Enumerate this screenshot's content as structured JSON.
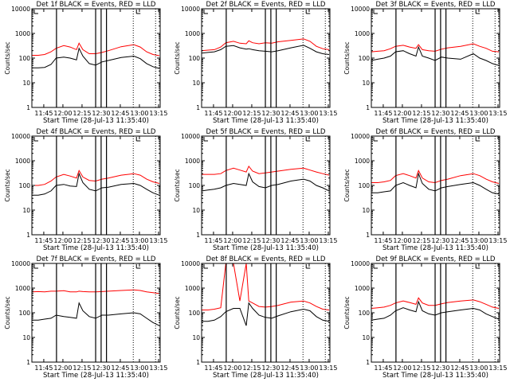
{
  "chart_data": {
    "type": "line",
    "layout": "3x3 grid",
    "xlabel": "Start Time (28-Jul-13 11:35:40)",
    "ylabel": "Counts/sec",
    "y_scale": "log",
    "ylim": [
      1,
      10000
    ],
    "y_ticks": [
      "1",
      "10",
      "100",
      "1000",
      "10000"
    ],
    "x_ticks": [
      "11:45",
      "12:00",
      "12:15",
      "12:30",
      "12:45",
      "13:00",
      "13:15"
    ],
    "x_tick_minutes": [
      9.33,
      24.33,
      39.33,
      54.33,
      69.33,
      84.33,
      99.33
    ],
    "xlim_minutes_since_start": [
      0,
      100.6
    ],
    "x_minutes_since_start": [
      0,
      5,
      10,
      15,
      19,
      25,
      30,
      35,
      37,
      40,
      45,
      50,
      55,
      60,
      70,
      80,
      85,
      90,
      95,
      100
    ],
    "vlines_solid_minutes": [
      19.3,
      50,
      54.3,
      58.5
    ],
    "vlines_dotted_minutes": [
      79.5,
      97
    ],
    "series_colors": {
      "events": "#000000",
      "lld": "#ff0000"
    },
    "panels": [
      {
        "title": "Det 1f BLACK = Events, RED = LLD",
        "events": [
          40,
          40,
          42,
          55,
          100,
          110,
          100,
          85,
          250,
          120,
          60,
          52,
          70,
          80,
          105,
          120,
          95,
          60,
          45,
          38
        ],
        "lld": [
          130,
          130,
          140,
          180,
          250,
          320,
          280,
          220,
          400,
          220,
          150,
          150,
          170,
          200,
          290,
          350,
          280,
          180,
          140,
          125
        ]
      },
      {
        "title": "Det 2f BLACK = Events, RED = LLD",
        "events": [
          160,
          170,
          180,
          220,
          300,
          320,
          260,
          230,
          240,
          220,
          200,
          190,
          180,
          200,
          260,
          330,
          250,
          180,
          150,
          140
        ],
        "lld": [
          200,
          210,
          220,
          280,
          420,
          480,
          400,
          380,
          500,
          420,
          380,
          420,
          400,
          460,
          520,
          600,
          480,
          300,
          240,
          220
        ]
      },
      {
        "title": "Det 3f BLACK = Events, RED = LLD",
        "events": [
          80,
          90,
          100,
          120,
          180,
          200,
          150,
          120,
          280,
          120,
          100,
          80,
          110,
          100,
          90,
          150,
          100,
          80,
          60,
          50
        ],
        "lld": [
          180,
          190,
          200,
          240,
          300,
          330,
          280,
          250,
          350,
          220,
          200,
          190,
          230,
          260,
          300,
          380,
          300,
          250,
          190,
          180
        ]
      },
      {
        "title": "Det 4f BLACK = Events, RED = LLD",
        "events": [
          40,
          40,
          45,
          60,
          100,
          110,
          95,
          90,
          300,
          130,
          70,
          60,
          80,
          85,
          110,
          120,
          100,
          70,
          50,
          40
        ],
        "lld": [
          100,
          100,
          110,
          150,
          220,
          280,
          240,
          200,
          400,
          220,
          160,
          150,
          180,
          200,
          260,
          300,
          260,
          180,
          140,
          120
        ]
      },
      {
        "title": "Det 5f BLACK = Events, RED = LLD",
        "events": [
          60,
          65,
          70,
          80,
          100,
          120,
          110,
          100,
          300,
          140,
          90,
          80,
          100,
          110,
          150,
          180,
          150,
          100,
          80,
          60
        ],
        "lld": [
          280,
          280,
          280,
          300,
          400,
          500,
          420,
          350,
          600,
          380,
          300,
          320,
          350,
          380,
          450,
          500,
          420,
          350,
          300,
          260
        ]
      },
      {
        "title": "Det 6f BLACK = Events, RED = LLD",
        "events": [
          50,
          50,
          55,
          60,
          100,
          130,
          100,
          80,
          300,
          120,
          70,
          60,
          80,
          90,
          110,
          130,
          100,
          70,
          50,
          45
        ],
        "lld": [
          130,
          130,
          140,
          160,
          250,
          300,
          250,
          200,
          400,
          200,
          140,
          130,
          160,
          180,
          250,
          300,
          250,
          180,
          140,
          120
        ]
      },
      {
        "title": "Det 7f BLACK = Events, RED = LLD",
        "events": [
          50,
          50,
          55,
          60,
          80,
          70,
          65,
          60,
          250,
          120,
          70,
          60,
          80,
          80,
          90,
          100,
          90,
          60,
          40,
          30
        ],
        "lld": [
          700,
          720,
          700,
          750,
          750,
          780,
          700,
          700,
          750,
          720,
          700,
          700,
          720,
          750,
          800,
          850,
          800,
          700,
          650,
          600
        ]
      },
      {
        "title": "Det 8f BLACK = Events, RED = LLD",
        "events": [
          45,
          45,
          50,
          70,
          110,
          150,
          150,
          30,
          250,
          150,
          80,
          65,
          60,
          75,
          110,
          140,
          120,
          70,
          50,
          45
        ],
        "lld": [
          130,
          130,
          140,
          160,
          10000,
          10000,
          300,
          10000,
          300,
          250,
          180,
          170,
          180,
          200,
          270,
          300,
          250,
          180,
          140,
          130
        ]
      },
      {
        "title": "Det 9f BLACK = Events, RED = LLD",
        "events": [
          50,
          55,
          60,
          80,
          120,
          160,
          130,
          110,
          280,
          120,
          90,
          80,
          100,
          110,
          130,
          150,
          130,
          90,
          70,
          55
        ],
        "lld": [
          150,
          160,
          170,
          200,
          250,
          300,
          260,
          220,
          400,
          250,
          200,
          200,
          230,
          260,
          300,
          330,
          280,
          220,
          170,
          150
        ]
      }
    ]
  }
}
